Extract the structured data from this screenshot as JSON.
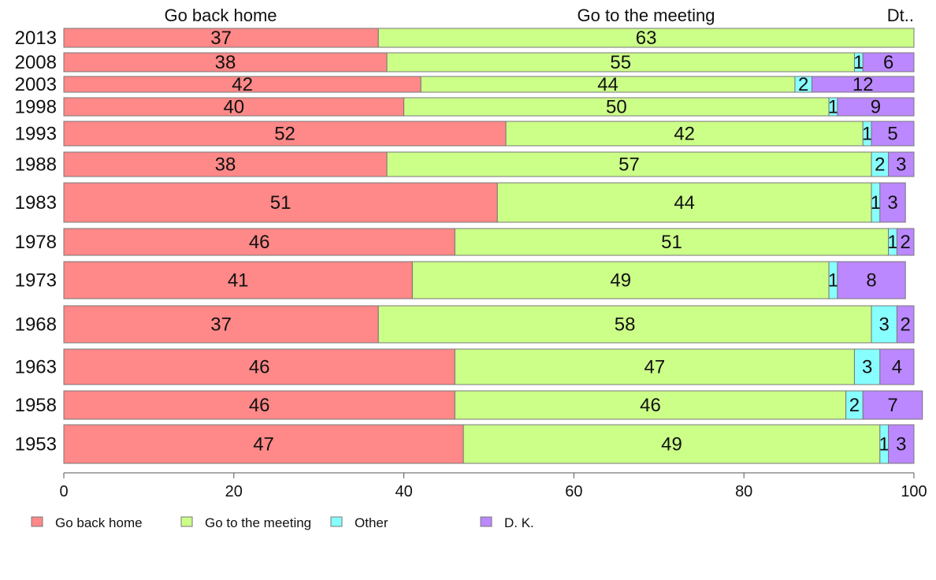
{
  "chart_data": {
    "type": "bar",
    "orientation": "horizontal",
    "stacked": true,
    "percent": true,
    "categories": [
      "2013",
      "2008",
      "2003",
      "1998",
      "1993",
      "1988",
      "1983",
      "1978",
      "1973",
      "1968",
      "1963",
      "1958",
      "1953"
    ],
    "series": [
      {
        "name": "Go back home",
        "color": "#ff8888",
        "values": [
          37,
          38,
          42,
          40,
          52,
          38,
          51,
          46,
          41,
          37,
          46,
          46,
          47
        ]
      },
      {
        "name": "Go to the meeting",
        "color": "#ccff88",
        "values": [
          63,
          55,
          44,
          50,
          42,
          57,
          44,
          51,
          49,
          58,
          47,
          46,
          49
        ]
      },
      {
        "name": "Other",
        "color": "#88ffff",
        "values": [
          0,
          1,
          2,
          1,
          1,
          2,
          1,
          1,
          1,
          3,
          3,
          2,
          1
        ]
      },
      {
        "name": "D. K.",
        "color": "#bb88ff",
        "values": [
          0,
          6,
          12,
          9,
          5,
          3,
          3,
          2,
          8,
          2,
          4,
          7,
          3
        ]
      }
    ],
    "column_headers": [
      "Go back home",
      "Go to the meeting",
      "Dt.."
    ],
    "xlim": [
      0,
      100
    ],
    "xticks": [
      "0",
      "20",
      "40",
      "60",
      "80",
      "100"
    ],
    "legend": "bottom-left",
    "grid": false
  }
}
